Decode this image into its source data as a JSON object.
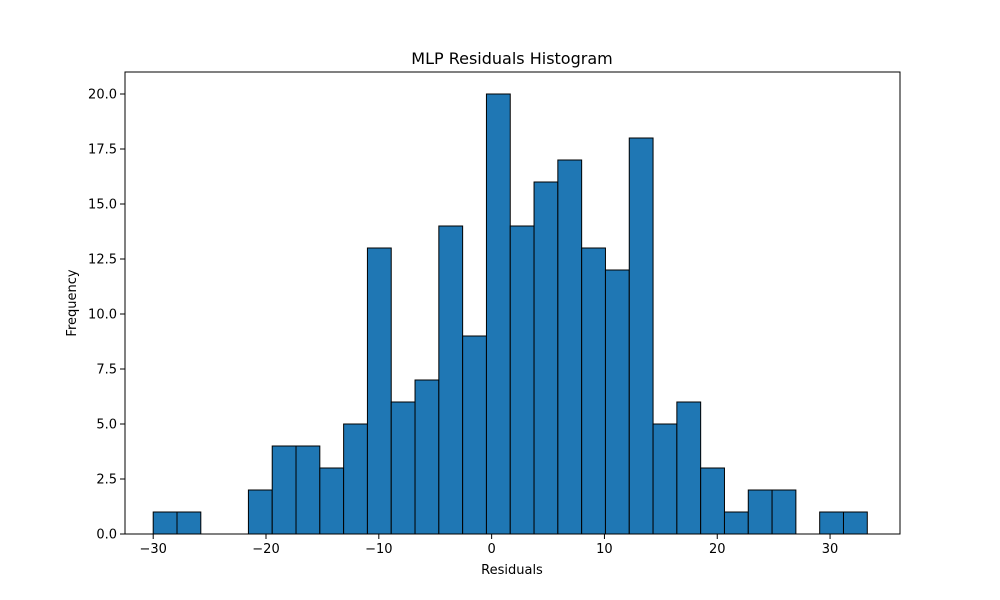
{
  "chart_data": {
    "type": "bar",
    "title": "MLP Residuals Histogram",
    "xlabel": "Residuals",
    "ylabel": "Frequency",
    "xlim": [
      -32.5,
      36.2
    ],
    "ylim": [
      0,
      21
    ],
    "x_ticks": [
      -30,
      -20,
      -10,
      0,
      10,
      20,
      30
    ],
    "x_tick_labels": [
      "−30",
      "−20",
      "−10",
      "0",
      "10",
      "20",
      "30"
    ],
    "y_ticks": [
      0,
      2.5,
      5,
      7.5,
      10,
      12.5,
      15,
      17.5,
      20
    ],
    "y_tick_labels": [
      "0.0",
      "2.5",
      "5.0",
      "7.5",
      "10.0",
      "12.5",
      "15.0",
      "17.5",
      "20.0"
    ],
    "bin_start": -30.0,
    "bin_width": 2.11,
    "values": [
      1,
      1,
      0,
      0,
      2,
      4,
      4,
      3,
      5,
      13,
      6,
      7,
      14,
      9,
      20,
      14,
      16,
      17,
      13,
      12,
      18,
      5,
      6,
      3,
      1,
      2,
      2,
      0,
      1,
      1
    ],
    "grid": false,
    "colors": {
      "bar_fill": "#1f77b4",
      "bar_edge": "#000000",
      "axis": "#000000"
    }
  }
}
